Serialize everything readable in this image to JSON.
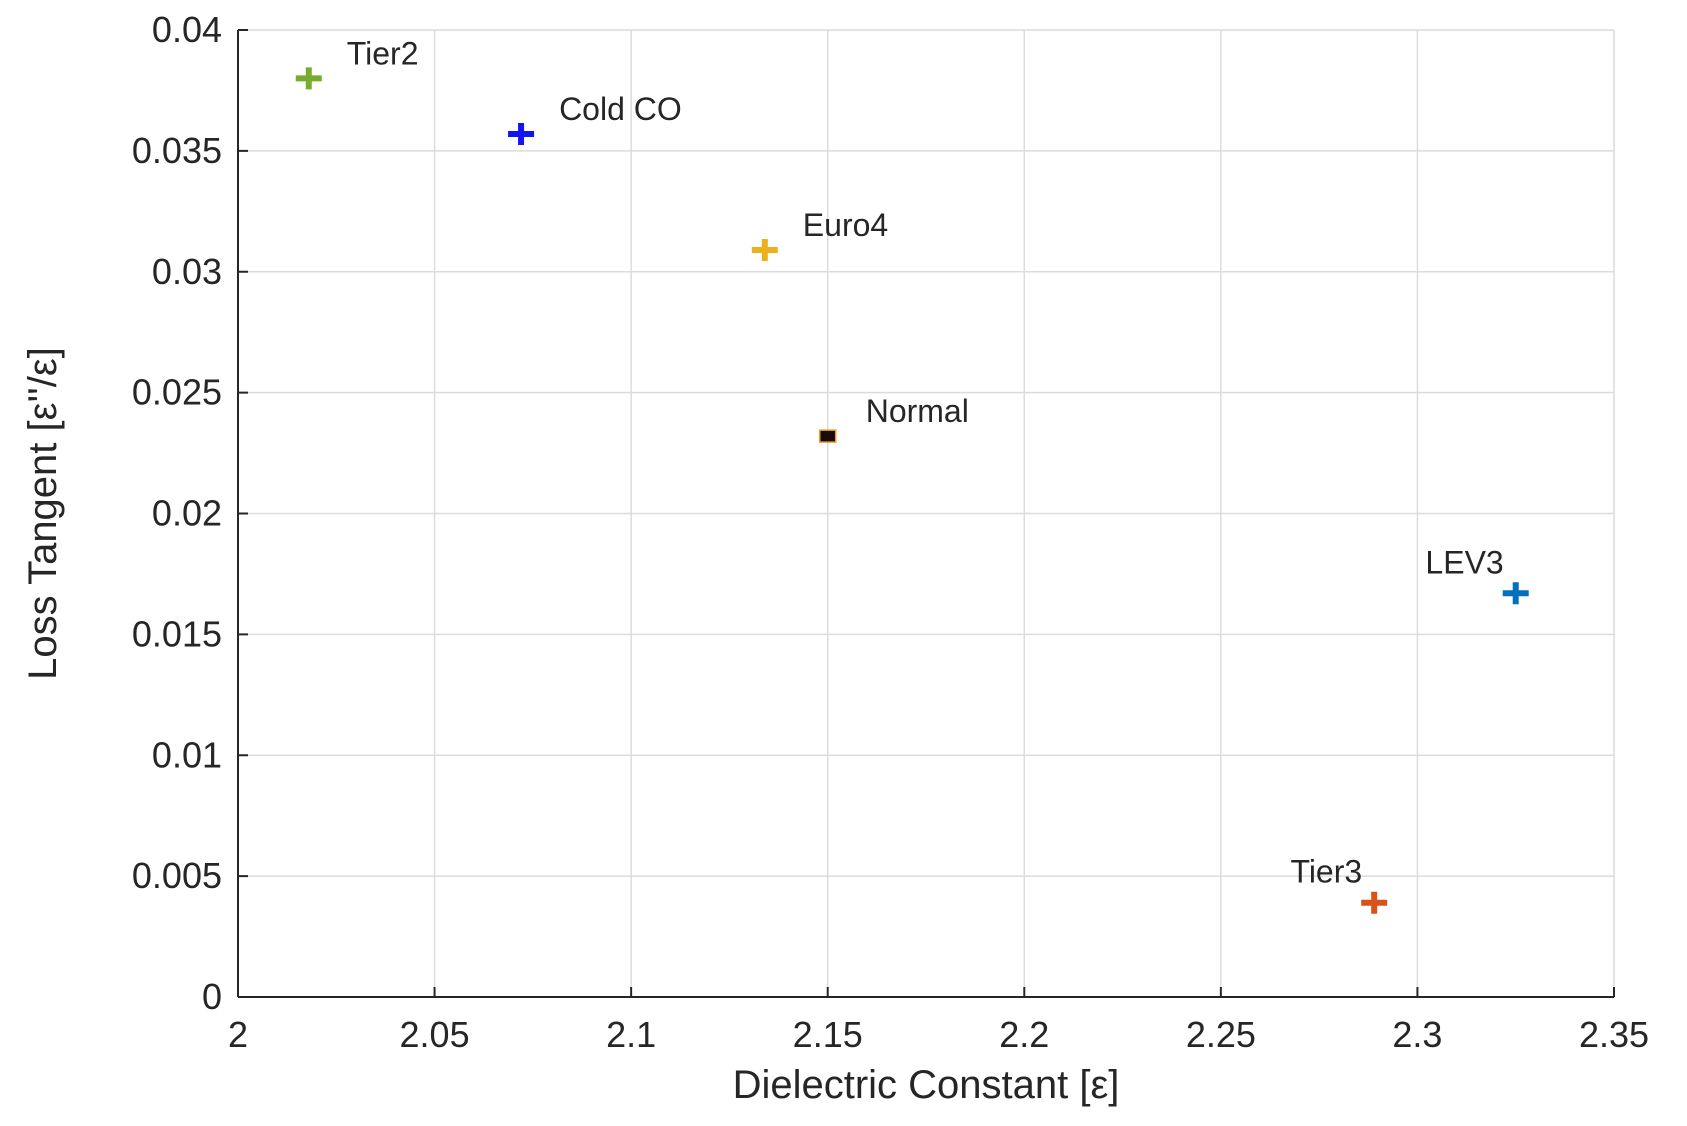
{
  "chart_data": {
    "type": "scatter",
    "title": "",
    "xlabel": "Dielectric Constant [ε]",
    "ylabel": "Loss Tangent [ε''/ε]",
    "xlim": [
      2,
      2.35
    ],
    "ylim": [
      0,
      0.04
    ],
    "grid": true,
    "xticks": [
      "2",
      "2.05",
      "2.1",
      "2.15",
      "2.2",
      "2.25",
      "2.3",
      "2.35"
    ],
    "xtick_values": [
      2,
      2.05,
      2.1,
      2.15,
      2.2,
      2.25,
      2.3,
      2.35
    ],
    "yticks": [
      "0",
      "0.005",
      "0.01",
      "0.015",
      "0.02",
      "0.025",
      "0.03",
      "0.035",
      "0.04"
    ],
    "ytick_values": [
      0,
      0.005,
      0.01,
      0.015,
      0.02,
      0.025,
      0.03,
      0.035,
      0.04
    ],
    "points": [
      {
        "name": "Tier2",
        "x": 2.018,
        "y": 0.038,
        "marker": "plus",
        "color": "#77ac30",
        "label_side": "right"
      },
      {
        "name": "Cold CO",
        "x": 2.072,
        "y": 0.0357,
        "marker": "plus",
        "color": "#1414f0",
        "label_side": "right"
      },
      {
        "name": "Euro4",
        "x": 2.134,
        "y": 0.0309,
        "marker": "plus",
        "color": "#edb120",
        "label_side": "right"
      },
      {
        "name": "Normal",
        "x": 2.15,
        "y": 0.0232,
        "marker": "square",
        "color": "#1a0a0a",
        "label_side": "right"
      },
      {
        "name": "LEV3",
        "x": 2.325,
        "y": 0.0167,
        "marker": "plus",
        "color": "#0072bd",
        "label_side": "left"
      },
      {
        "name": "Tier3",
        "x": 2.289,
        "y": 0.0039,
        "marker": "plus",
        "color": "#d95319",
        "label_side": "left"
      }
    ]
  }
}
